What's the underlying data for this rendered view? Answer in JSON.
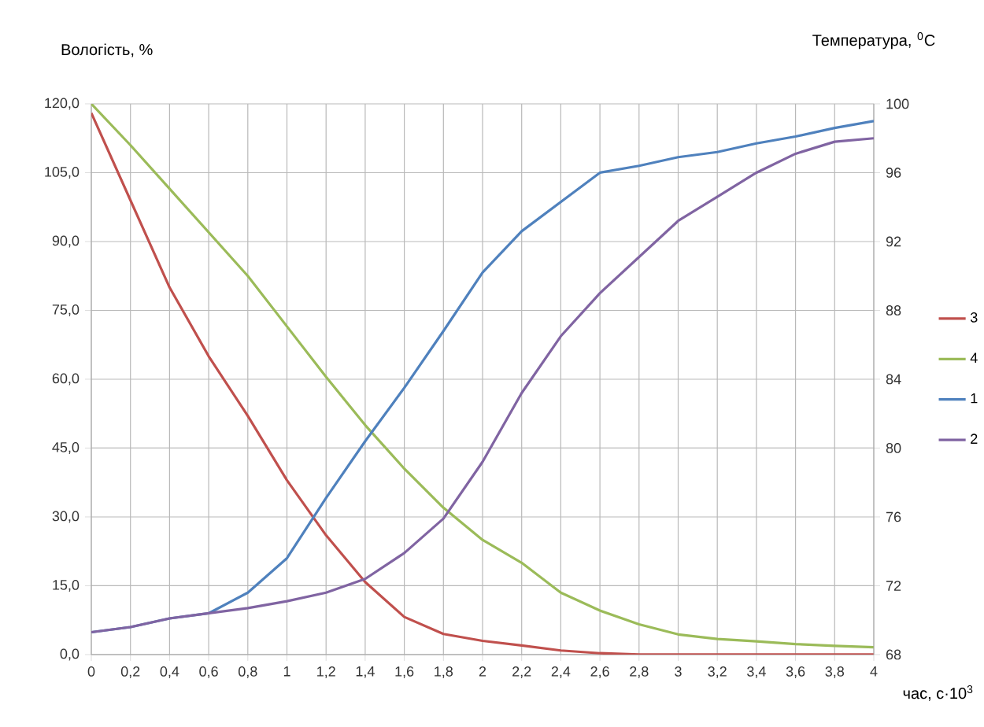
{
  "chart_data": {
    "type": "line",
    "ylabel": "Вологість, %",
    "y2label": "Температура, $^{0}$С",
    "xlabel": "час, с·10$^{3}$",
    "x": [
      0,
      0.2,
      0.4,
      0.6,
      0.8,
      1.0,
      1.2,
      1.4,
      1.6,
      1.8,
      2.0,
      2.2,
      2.4,
      2.6,
      2.8,
      3.0,
      3.2,
      3.4,
      3.6,
      3.8,
      4.0
    ],
    "series": [
      {
        "name": "3",
        "color": "#c0504d",
        "values": [
          118,
          99,
          80,
          65,
          52,
          38,
          26,
          15.8,
          8.2,
          4.5,
          3,
          2,
          0.9,
          0.3,
          0,
          0,
          0,
          0,
          0,
          0,
          0
        ]
      },
      {
        "name": "4",
        "color": "#9bbb59",
        "values": [
          120,
          111,
          101.5,
          92,
          82.5,
          71.5,
          60.5,
          50,
          40.5,
          32,
          25,
          20,
          13.5,
          9.6,
          6.6,
          4.4,
          3.4,
          2.9,
          2.3,
          1.9,
          1.6
        ]
      },
      {
        "name": "1",
        "color": "#4f81bd",
        "axis": "y2",
        "values": [
          69.3,
          69.6,
          70.1,
          70.4,
          71.6,
          73.6,
          77.1,
          80.4,
          83.5,
          86.8,
          90.2,
          92.6,
          94.3,
          96,
          96.4,
          96.9,
          97.2,
          97.7,
          98.1,
          98.6,
          99
        ]
      },
      {
        "name": "2",
        "color": "#8064a2",
        "axis": "y2",
        "values": [
          69.3,
          69.6,
          70.1,
          70.4,
          70.7,
          71.1,
          71.6,
          72.4,
          73.9,
          75.9,
          79.2,
          83.2,
          86.5,
          89,
          91.1,
          93.2,
          94.6,
          96,
          97.1,
          97.8,
          98
        ]
      }
    ],
    "xlim": [
      0,
      4
    ],
    "xticks": [
      0,
      {
        "value": 0.2,
        "label": "0,2"
      },
      {
        "value": 0.4,
        "label": "0,4"
      },
      {
        "value": 0.6,
        "label": "0,6"
      },
      {
        "value": 0.8,
        "label": "0,8"
      },
      1,
      {
        "value": 1.2,
        "label": "1,2"
      },
      {
        "value": 1.4,
        "label": "1,4"
      },
      {
        "value": 1.6,
        "label": "1,6"
      },
      {
        "value": 1.8,
        "label": "1,8"
      },
      2,
      {
        "value": 2.2,
        "label": "2,2"
      },
      {
        "value": 2.4,
        "label": "2,4"
      },
      {
        "value": 2.6,
        "label": "2,6"
      },
      {
        "value": 2.8,
        "label": "2,8"
      },
      3,
      {
        "value": 3.2,
        "label": "3,2"
      },
      {
        "value": 3.4,
        "label": "3,4"
      },
      {
        "value": 3.6,
        "label": "3,6"
      },
      {
        "value": 3.8,
        "label": "3,8"
      },
      4
    ],
    "ylim": [
      0,
      120
    ],
    "yticks": [
      {
        "value": 0,
        "label": "0,0"
      },
      {
        "value": 15,
        "label": "15,0"
      },
      {
        "value": 30,
        "label": "30,0"
      },
      {
        "value": 45,
        "label": "45,0"
      },
      {
        "value": 60,
        "label": "60,0"
      },
      {
        "value": 75,
        "label": "75,0"
      },
      {
        "value": 90,
        "label": "90,0"
      },
      {
        "value": 105,
        "label": "105,0"
      },
      {
        "value": 120,
        "label": "120,0"
      }
    ],
    "y2lim": [
      68,
      100
    ],
    "y2ticks": [
      68,
      72,
      76,
      80,
      84,
      88,
      92,
      96,
      100
    ],
    "grid": true,
    "legend": "right",
    "line_style": "solid"
  }
}
